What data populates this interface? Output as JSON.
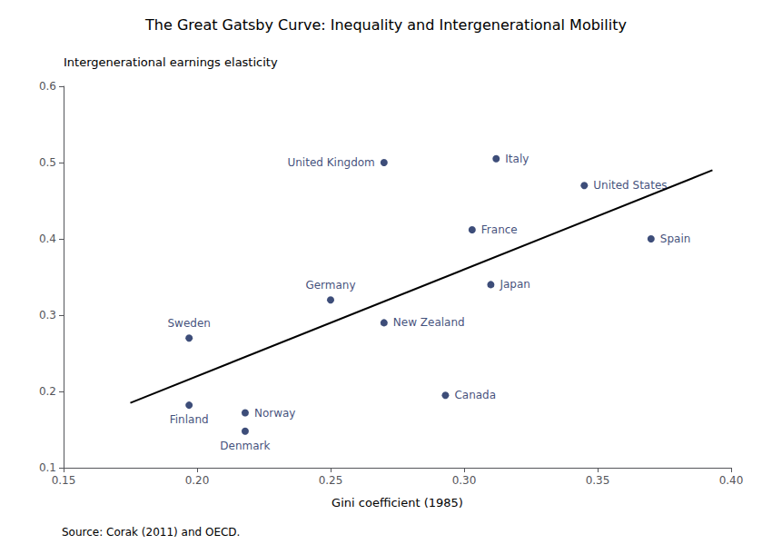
{
  "chart_data": {
    "type": "scatter",
    "title": "The Great Gatsby Curve: Inequality and Intergenerational Mobility",
    "xlabel": "Gini coefficient (1985)",
    "ylabel": "Intergenerational earnings elasticity",
    "source": "Source: Corak (2011) and OECD.",
    "labels": [
      "Finland",
      "Sweden",
      "Norway",
      "Denmark",
      "Germany",
      "New Zealand",
      "United Kingdom",
      "France",
      "Japan",
      "Italy",
      "Canada",
      "United States",
      "Spain"
    ],
    "x": [
      0.197,
      0.197,
      0.218,
      0.218,
      0.25,
      0.27,
      0.27,
      0.303,
      0.31,
      0.312,
      0.293,
      0.345,
      0.37
    ],
    "values": [
      0.182,
      0.27,
      0.172,
      0.148,
      0.32,
      0.29,
      0.5,
      0.412,
      0.34,
      0.505,
      0.195,
      0.47,
      0.4
    ],
    "color": "#0d2158",
    "trend_line": {
      "x": [
        0.175,
        0.393
      ],
      "values": [
        0.185,
        0.49
      ],
      "color": "#000000"
    },
    "xlim": [
      0.15,
      0.4
    ],
    "ylim": [
      0.1,
      0.6
    ],
    "xticks": [
      0.15,
      {
        "value": 0.2,
        "label": "0.20"
      },
      0.25,
      {
        "value": 0.3,
        "label": "0.30"
      },
      0.35,
      {
        "value": 0.4,
        "label": "0.40"
      }
    ],
    "yticks": [
      0.1,
      0.2,
      0.3,
      0.4,
      0.5,
      0.6
    ],
    "grid": false
  }
}
